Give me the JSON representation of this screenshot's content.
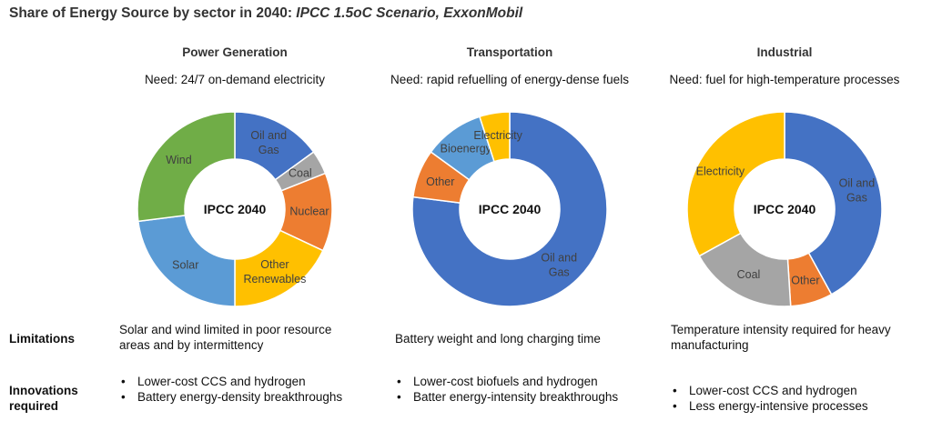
{
  "title": {
    "main": "Share of Energy Source by sector in 2040: ",
    "sub": "IPCC 1.5oC Scenario, ExxonMobil"
  },
  "row_labels": {
    "limitations": "Limitations",
    "innovations_line1": "Innovations",
    "innovations_line2": "required"
  },
  "colors": {
    "blue": "#4472C4",
    "gray": "#A5A5A5",
    "orange": "#ED7D31",
    "yellow": "#FFC000",
    "lightblue": "#5B9BD5",
    "green": "#70AD47"
  },
  "sectors": [
    {
      "title": "Power Generation",
      "need": "Need: 24/7 on-demand electricity",
      "limitations": "Solar and wind limited in poor resource areas and by intermittency",
      "innovations": [
        "Lower-cost CCS and hydrogen",
        "Battery energy-density breakthroughs"
      ]
    },
    {
      "title": "Transportation",
      "need": "Need: rapid refuelling of energy-dense fuels",
      "limitations": "Battery weight and long charging time",
      "innovations": [
        "Lower-cost biofuels and hydrogen",
        "Batter energy-intensity breakthroughs"
      ]
    },
    {
      "title": "Industrial",
      "need": "Need: fuel for high-temperature processes",
      "limitations": "Temperature intensity required for heavy manufacturing",
      "innovations": [
        "Lower-cost CCS and hydrogen",
        "Less energy-intensive processes"
      ]
    }
  ],
  "chart_data": [
    {
      "type": "pie",
      "title": "Power Generation",
      "center_label": "IPCC 2040",
      "slices": [
        {
          "label": "Oil and Gas",
          "value": 15,
          "color": "#4472C4"
        },
        {
          "label": "Coal",
          "value": 4,
          "color": "#A5A5A5"
        },
        {
          "label": "Nuclear",
          "value": 13,
          "color": "#ED7D31"
        },
        {
          "label": "Other Renewables",
          "value": 18,
          "color": "#FFC000"
        },
        {
          "label": "Solar",
          "value": 23,
          "color": "#5B9BD5"
        },
        {
          "label": "Wind",
          "value": 27,
          "color": "#70AD47"
        }
      ]
    },
    {
      "type": "pie",
      "title": "Transportation",
      "center_label": "IPCC 2040",
      "slices": [
        {
          "label": "Oil and Gas",
          "value": 77,
          "color": "#4472C4"
        },
        {
          "label": "Other",
          "value": 8,
          "color": "#ED7D31"
        },
        {
          "label": "Bioenergy",
          "value": 10,
          "color": "#5B9BD5"
        },
        {
          "label": "Electricity",
          "value": 5,
          "color": "#FFC000"
        }
      ]
    },
    {
      "type": "pie",
      "title": "Industrial",
      "center_label": "IPCC 2040",
      "slices": [
        {
          "label": "Oil and Gas",
          "value": 42,
          "color": "#4472C4"
        },
        {
          "label": "Other",
          "value": 7,
          "color": "#ED7D31"
        },
        {
          "label": "Coal",
          "value": 18,
          "color": "#A5A5A5"
        },
        {
          "label": "Electricity",
          "value": 33,
          "color": "#FFC000"
        }
      ]
    }
  ]
}
